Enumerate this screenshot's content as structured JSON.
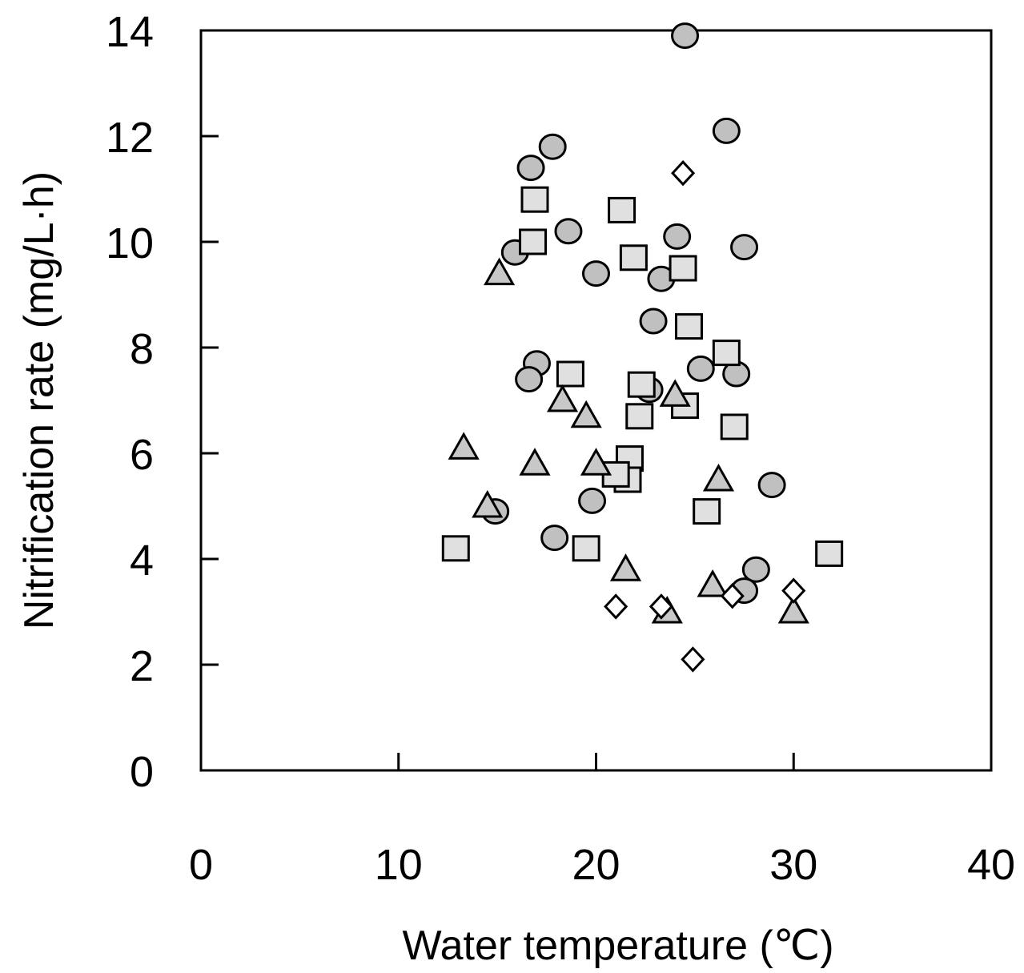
{
  "chart_data": {
    "type": "scatter",
    "title": "",
    "xlabel": "Water temperature (℃)",
    "ylabel": "Nitrification rate (mg/L·h)",
    "xlim": [
      0,
      40
    ],
    "ylim": [
      0,
      14
    ],
    "xticks": [
      0,
      10,
      20,
      30,
      40
    ],
    "yticks": [
      0,
      2,
      4,
      6,
      8,
      10,
      12,
      14
    ],
    "grid": false,
    "legend": "none",
    "series": [
      {
        "name": "circle",
        "marker": "circle",
        "fill": "#c0c0c0",
        "points": [
          [
            24.5,
            13.9
          ],
          [
            26.6,
            12.1
          ],
          [
            17.8,
            11.8
          ],
          [
            16.7,
            11.4
          ],
          [
            18.6,
            10.2
          ],
          [
            24.1,
            10.1
          ],
          [
            27.5,
            9.9
          ],
          [
            15.9,
            9.8
          ],
          [
            20.0,
            9.4
          ],
          [
            23.3,
            9.3
          ],
          [
            22.9,
            8.5
          ],
          [
            17.0,
            7.7
          ],
          [
            16.6,
            7.4
          ],
          [
            25.3,
            7.6
          ],
          [
            27.1,
            7.5
          ],
          [
            22.7,
            7.2
          ],
          [
            28.9,
            5.4
          ],
          [
            14.9,
            4.9
          ],
          [
            19.8,
            5.1
          ],
          [
            17.9,
            4.4
          ],
          [
            28.1,
            3.8
          ],
          [
            27.5,
            3.4
          ]
        ]
      },
      {
        "name": "square",
        "marker": "square",
        "fill": "#e0e0e0",
        "points": [
          [
            16.9,
            10.8
          ],
          [
            21.3,
            10.6
          ],
          [
            16.8,
            10.0
          ],
          [
            21.9,
            9.7
          ],
          [
            24.4,
            9.5
          ],
          [
            24.7,
            8.4
          ],
          [
            26.6,
            7.9
          ],
          [
            18.7,
            7.5
          ],
          [
            22.3,
            7.3
          ],
          [
            24.5,
            6.9
          ],
          [
            22.2,
            6.7
          ],
          [
            27.0,
            6.5
          ],
          [
            21.7,
            5.9
          ],
          [
            21.6,
            5.5
          ],
          [
            21.0,
            5.6
          ],
          [
            25.6,
            4.9
          ],
          [
            12.9,
            4.2
          ],
          [
            19.5,
            4.2
          ],
          [
            31.8,
            4.1
          ]
        ]
      },
      {
        "name": "triangle",
        "marker": "triangle",
        "fill": "#c8c8c8",
        "points": [
          [
            15.1,
            9.4
          ],
          [
            18.3,
            7.0
          ],
          [
            24.0,
            7.1
          ],
          [
            19.5,
            6.7
          ],
          [
            13.3,
            6.1
          ],
          [
            16.9,
            5.8
          ],
          [
            20.0,
            5.8
          ],
          [
            26.2,
            5.5
          ],
          [
            14.5,
            5.0
          ],
          [
            21.5,
            3.8
          ],
          [
            25.9,
            3.5
          ],
          [
            23.6,
            3.0
          ],
          [
            30.0,
            3.0
          ]
        ]
      },
      {
        "name": "diamond",
        "marker": "diamond",
        "fill": "#ffffff",
        "points": [
          [
            24.4,
            11.3
          ],
          [
            21.0,
            3.1
          ],
          [
            23.3,
            3.1
          ],
          [
            26.9,
            3.3
          ],
          [
            30.0,
            3.4
          ],
          [
            24.9,
            2.1
          ]
        ]
      }
    ]
  }
}
